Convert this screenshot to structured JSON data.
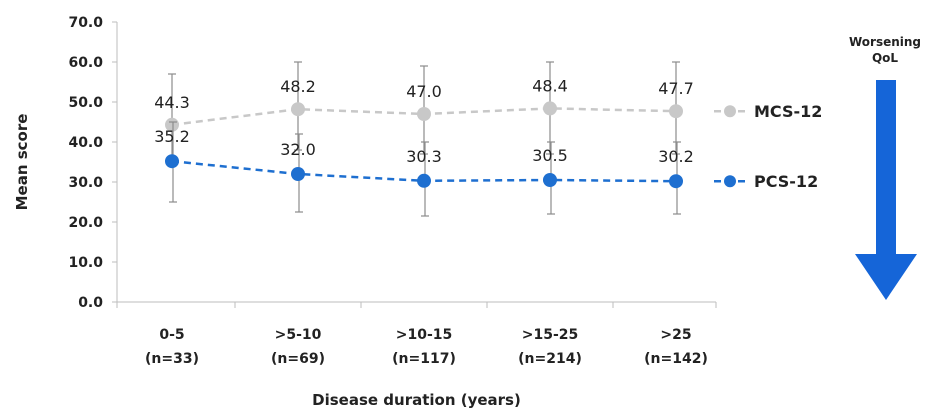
{
  "chart_data": {
    "type": "line",
    "categories": [
      "0-5",
      ">5-10",
      ">10-15",
      ">15-25",
      ">25"
    ],
    "category_counts": [
      "(n=33)",
      "(n=69)",
      "(n=117)",
      "(n=214)",
      "(n=142)"
    ],
    "xlabel": "Disease duration (years)",
    "ylabel": "Mean score",
    "ylim": [
      0,
      70
    ],
    "yticks": [
      "0.0",
      "10.0",
      "20.0",
      "30.0",
      "40.0",
      "50.0",
      "60.0",
      "70.0"
    ],
    "grid": false,
    "legend_position": "right",
    "series": [
      {
        "name": "MCS-12",
        "color": "#c8c8c8",
        "values": [
          44.3,
          48.2,
          47.0,
          48.4,
          47.7
        ],
        "labels": [
          "44.3",
          "48.2",
          "47.0",
          "48.4",
          "47.7"
        ],
        "error_low": [
          36,
          38,
          37,
          37,
          37
        ],
        "error_high": [
          57,
          60,
          59,
          60,
          60
        ]
      },
      {
        "name": "PCS-12",
        "color": "#1e6fd0",
        "values": [
          35.2,
          32.0,
          30.3,
          30.5,
          30.2
        ],
        "labels": [
          "35.2",
          "32.0",
          "30.3",
          "30.5",
          "30.2"
        ],
        "error_low": [
          25,
          22.5,
          21.5,
          22,
          22
        ],
        "error_high": [
          45,
          42,
          40,
          40,
          40
        ]
      }
    ],
    "annotation": {
      "lines": [
        "Worsening",
        "QoL"
      ],
      "arrow_color": "#1565d8",
      "arrow_direction": "down"
    }
  }
}
